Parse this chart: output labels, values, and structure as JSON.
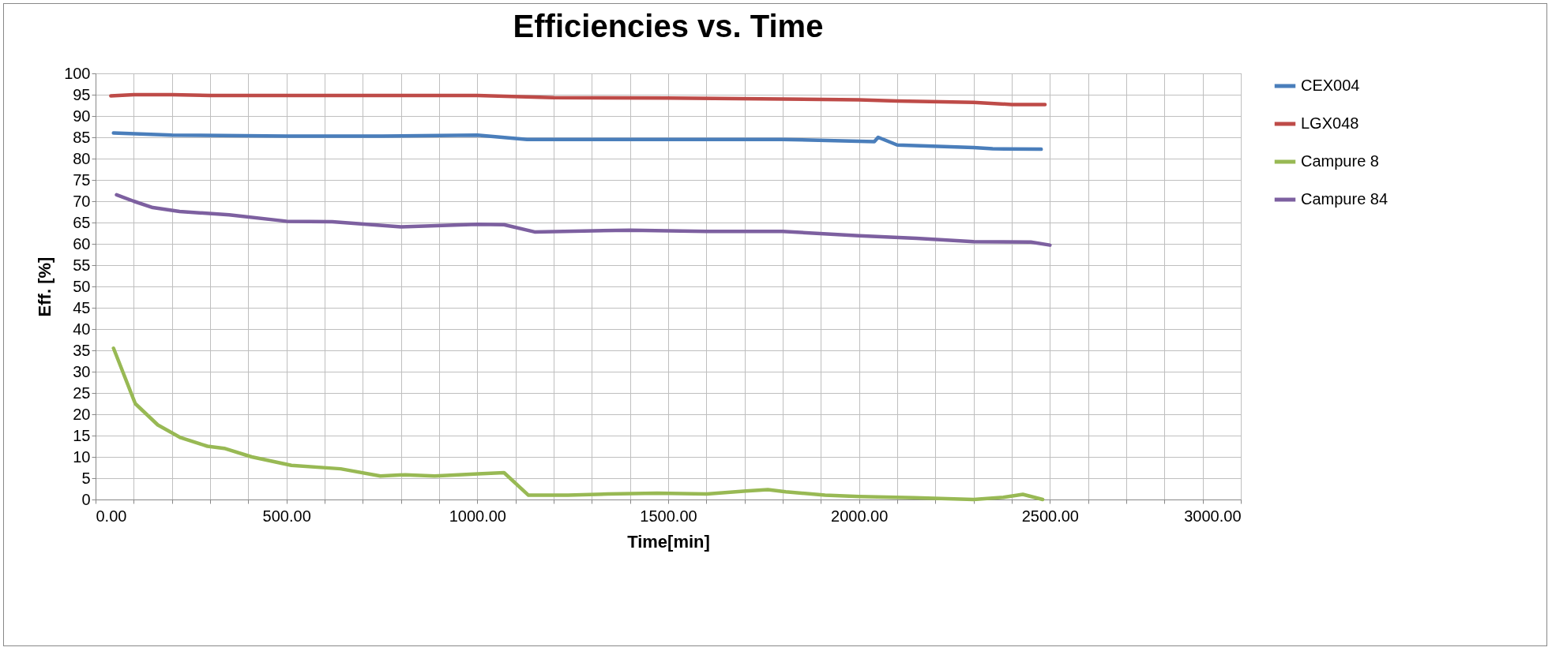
{
  "chart_data": {
    "type": "line",
    "title": "Efficiencies vs. Time",
    "xlabel": "Time[min]",
    "ylabel": "Eff. [%]",
    "xlim": [
      0,
      3000
    ],
    "xticks": [
      {
        "value": 0,
        "label": "0.00"
      },
      {
        "value": 100,
        "label": null
      },
      {
        "value": 200,
        "label": null
      },
      {
        "value": 300,
        "label": null
      },
      {
        "value": 400,
        "label": null
      },
      {
        "value": 500,
        "label": "500.00"
      },
      {
        "value": 600,
        "label": null
      },
      {
        "value": 700,
        "label": null
      },
      {
        "value": 800,
        "label": null
      },
      {
        "value": 900,
        "label": null
      },
      {
        "value": 1000,
        "label": "1000.00"
      },
      {
        "value": 1100,
        "label": null
      },
      {
        "value": 1200,
        "label": null
      },
      {
        "value": 1300,
        "label": null
      },
      {
        "value": 1400,
        "label": null
      },
      {
        "value": 1500,
        "label": "1500.00"
      },
      {
        "value": 1600,
        "label": null
      },
      {
        "value": 1700,
        "label": null
      },
      {
        "value": 1800,
        "label": null
      },
      {
        "value": 1900,
        "label": null
      },
      {
        "value": 2000,
        "label": "2000.00"
      },
      {
        "value": 2100,
        "label": null
      },
      {
        "value": 2200,
        "label": null
      },
      {
        "value": 2300,
        "label": null
      },
      {
        "value": 2400,
        "label": null
      },
      {
        "value": 2500,
        "label": "2500.00"
      },
      {
        "value": 2600,
        "label": null
      },
      {
        "value": 2700,
        "label": null
      },
      {
        "value": 2800,
        "label": null
      },
      {
        "value": 2900,
        "label": null
      },
      {
        "value": 3000,
        "label": "3000.00"
      }
    ],
    "ylim": [
      0,
      100
    ],
    "yticks": [
      0,
      5,
      10,
      15,
      20,
      25,
      30,
      35,
      40,
      45,
      50,
      55,
      60,
      65,
      70,
      75,
      80,
      85,
      90,
      95,
      100
    ],
    "grid": true,
    "legend": "right",
    "marker": "none",
    "line_style": "solid",
    "series": [
      {
        "name": "CEX004",
        "color": "#4a7ebb",
        "x": [
          47,
          200,
          500,
          750,
          1000,
          1130,
          1500,
          1800,
          2040,
          2050,
          2100,
          2300,
          2350,
          2477
        ],
        "values": [
          86,
          85.5,
          85.3,
          85.3,
          85.5,
          84.5,
          84.5,
          84.5,
          84,
          85,
          83.2,
          82.6,
          82.3,
          82.2
        ]
      },
      {
        "name": "LGX048",
        "color": "#be4b48",
        "x": [
          40,
          100,
          200,
          300,
          500,
          1000,
          1200,
          1500,
          1800,
          2000,
          2100,
          2300,
          2400,
          2487
        ],
        "values": [
          94.7,
          95,
          95,
          94.8,
          94.8,
          94.8,
          94.3,
          94.2,
          94,
          93.8,
          93.5,
          93.2,
          92.7,
          92.7
        ]
      },
      {
        "name": "Campure 8",
        "color": "#98b954",
        "x": [
          47,
          104,
          163,
          223,
          293,
          337,
          409,
          513,
          642,
          746,
          811,
          888,
          1002,
          1070,
          1134,
          1238,
          1342,
          1471,
          1601,
          1704,
          1761,
          1808,
          1911,
          2000,
          2145,
          2300,
          2378,
          2429,
          2481
        ],
        "values": [
          35.5,
          22.5,
          17.5,
          14.5,
          12.5,
          12,
          10,
          8,
          7.2,
          5.5,
          5.8,
          5.5,
          6,
          6.3,
          1,
          1,
          1.3,
          1.5,
          1.3,
          2,
          2.3,
          1.8,
          1,
          0.7,
          0.4,
          0,
          0.5,
          1.2,
          0
        ]
      },
      {
        "name": "Campure 84",
        "color": "#7d60a0",
        "x": [
          55,
          100,
          150,
          220,
          350,
          500,
          620,
          800,
          1000,
          1070,
          1150,
          1400,
          1600,
          1800,
          2000,
          2150,
          2300,
          2450,
          2500
        ],
        "values": [
          71.5,
          70,
          68.5,
          67.6,
          66.8,
          65.3,
          65.2,
          64,
          64.6,
          64.5,
          62.8,
          63.2,
          62.9,
          62.9,
          61.9,
          61.3,
          60.5,
          60.4,
          59.7
        ]
      }
    ]
  }
}
